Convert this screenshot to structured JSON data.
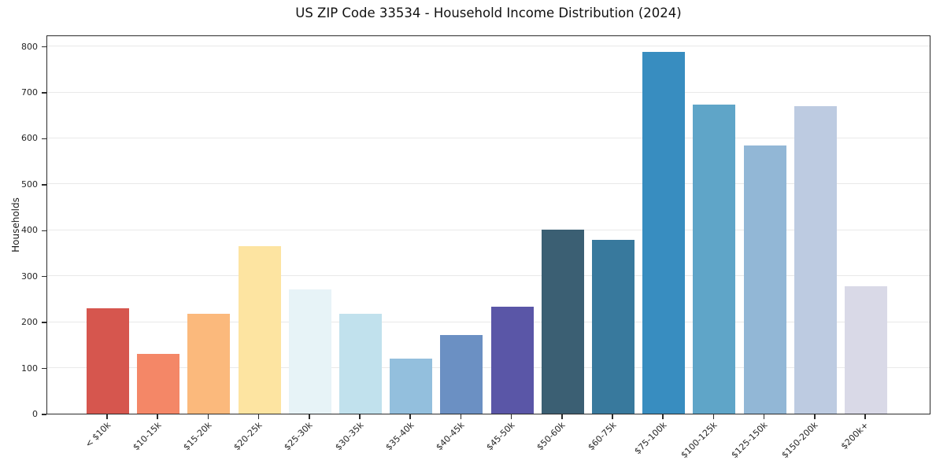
{
  "title": "US ZIP Code 33534 - Household Income Distribution (2024)",
  "chart_data": {
    "type": "bar",
    "title": "US ZIP Code 33534 - Household Income Distribution (2024)",
    "xlabel": "",
    "ylabel": "Households",
    "categories": [
      "< $10k",
      "$10-15k",
      "$15-20k",
      "$20-25k",
      "$25-30k",
      "$30-35k",
      "$35-40k",
      "$40-45k",
      "$45-50k",
      "$50-60k",
      "$60-75k",
      "$75-100k",
      "$100-125k",
      "$125-150k",
      "$150-200k",
      "$200k+"
    ],
    "values": [
      230,
      130,
      217,
      365,
      270,
      218,
      119,
      172,
      232,
      400,
      378,
      787,
      673,
      583,
      669,
      278
    ],
    "bar_colors": [
      "#d6564e",
      "#f48767",
      "#fbb97c",
      "#fde4a1",
      "#e7f3f7",
      "#c1e1ed",
      "#93bfdd",
      "#6b90c3",
      "#5a56a7",
      "#3b5f73",
      "#38799d",
      "#388dc0",
      "#5fa5c8",
      "#92b7d6",
      "#bdcbe1",
      "#d9d9e7"
    ],
    "yticks": [
      0,
      100,
      200,
      300,
      400,
      500,
      600,
      700,
      800
    ],
    "ylim": [
      0,
      825
    ],
    "x_tick_rotation": 45,
    "grid": "horizontal-only",
    "gridline_color": "#e9e9e9",
    "legend": "none",
    "background_color": "#ffffff"
  }
}
